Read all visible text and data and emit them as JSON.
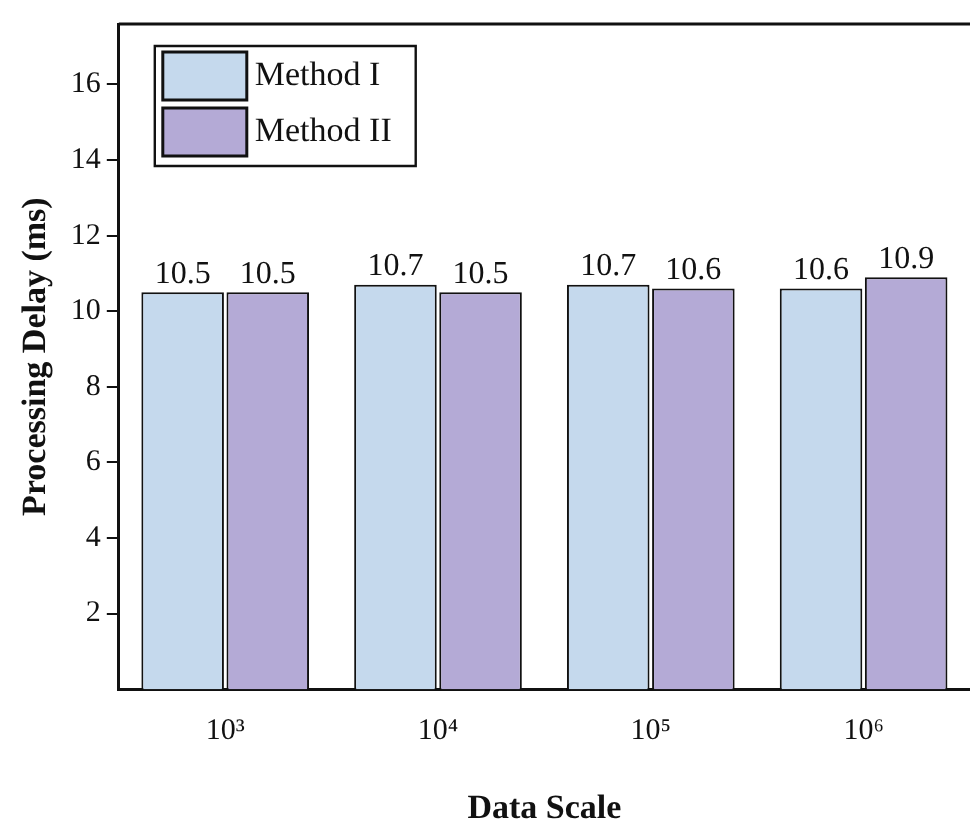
{
  "chart_data": {
    "type": "bar",
    "xlabel": "Data Scale",
    "ylabel": "Processing Delay (ms)",
    "categories": [
      "10³",
      "10⁴",
      "10⁵",
      "10⁶"
    ],
    "series": [
      {
        "name": "Method I",
        "color": "#c5d9ed",
        "values": [
          10.5,
          10.7,
          10.7,
          10.6
        ]
      },
      {
        "name": "Method II",
        "color": "#b4aad6",
        "values": [
          10.5,
          10.5,
          10.6,
          10.9
        ]
      }
    ],
    "ylim": [
      0,
      17.6
    ],
    "yticks": [
      2,
      4,
      6,
      8,
      10,
      12,
      14,
      16
    ],
    "grid": false,
    "legend": "top left",
    "data_labels": true
  }
}
